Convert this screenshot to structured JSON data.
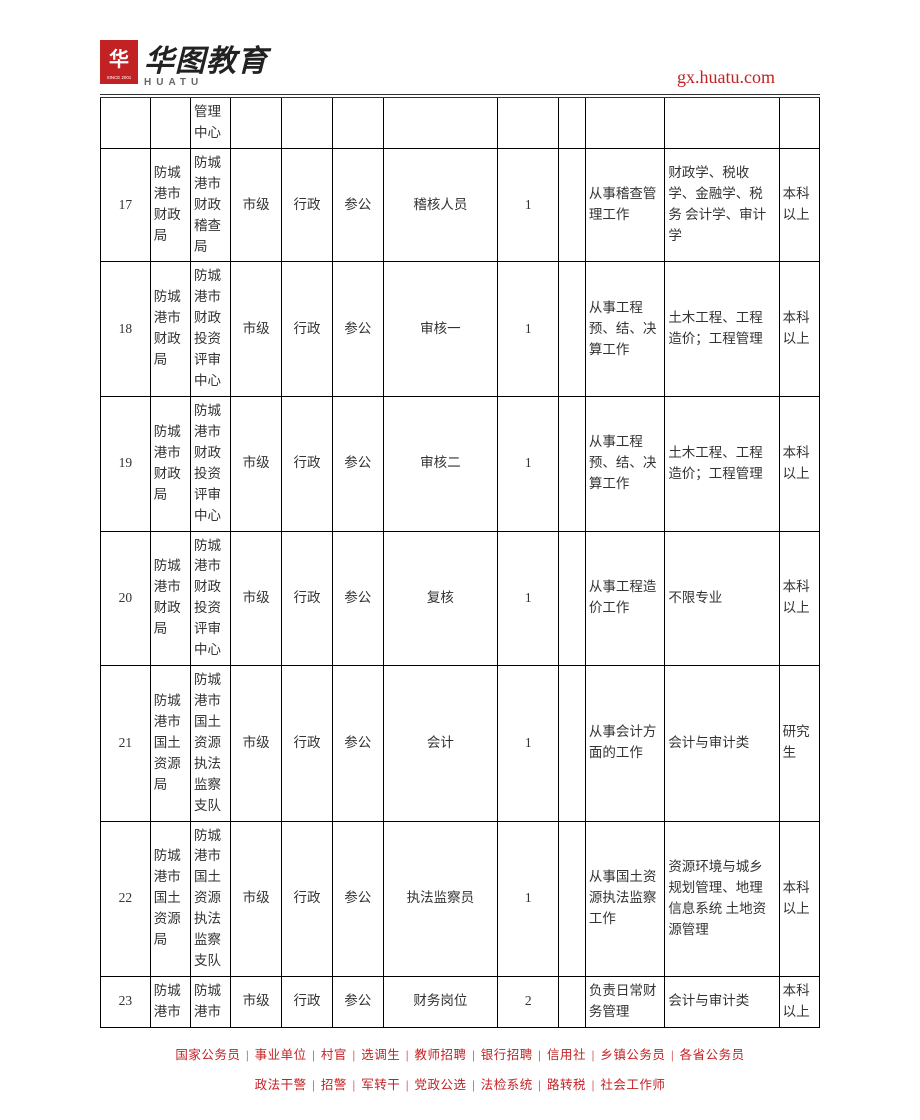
{
  "header": {
    "logo_cn": "华图教育",
    "logo_en": "HUATU",
    "url": "gx.huatu.com"
  },
  "table": {
    "column_widths_class": [
      "col0",
      "col1",
      "col2",
      "col3",
      "col4",
      "col5",
      "col6",
      "col7",
      "col8",
      "col9",
      "col10",
      "col11"
    ],
    "rows": [
      {
        "top_partial": true,
        "cells": [
          "",
          "",
          "管理中心",
          "",
          "",
          "",
          "",
          "",
          "",
          "",
          "",
          ""
        ],
        "align": [
          "c",
          "l",
          "l",
          "c",
          "c",
          "c",
          "c",
          "c",
          "c",
          "l",
          "l",
          "l"
        ]
      },
      {
        "cells": [
          "17",
          "防城港市财政局",
          "防城港市财政稽查局",
          "市级",
          "行政",
          "参公",
          "稽核人员",
          "1",
          "",
          "从事稽查管理工作",
          "财政学、税收学、金融学、税务 会计学、审计学",
          "本科以上"
        ],
        "align": [
          "c",
          "l",
          "l",
          "c",
          "c",
          "c",
          "c",
          "c",
          "c",
          "l",
          "l",
          "l"
        ]
      },
      {
        "cells": [
          "18",
          "防城港市财政局",
          "防城港市财政投资评审中心",
          "市级",
          "行政",
          "参公",
          "审核一",
          "1",
          "",
          "从事工程预、结、决算工作",
          "土木工程、工程造价；工程管理",
          "本科以上"
        ],
        "align": [
          "c",
          "l",
          "l",
          "c",
          "c",
          "c",
          "c",
          "c",
          "c",
          "l",
          "l",
          "l"
        ]
      },
      {
        "cells": [
          "19",
          "防城港市财政局",
          "防城港市财政投资评审中心",
          "市级",
          "行政",
          "参公",
          "审核二",
          "1",
          "",
          "从事工程预、结、决算工作",
          "土木工程、工程造价；工程管理",
          "本科以上"
        ],
        "align": [
          "c",
          "l",
          "l",
          "c",
          "c",
          "c",
          "c",
          "c",
          "c",
          "l",
          "l",
          "l"
        ]
      },
      {
        "cells": [
          "20",
          "防城港市财政局",
          "防城港市财政投资评审中心",
          "市级",
          "行政",
          "参公",
          "复核",
          "1",
          "",
          "从事工程造价工作",
          "不限专业",
          "本科以上"
        ],
        "align": [
          "c",
          "l",
          "l",
          "c",
          "c",
          "c",
          "c",
          "c",
          "c",
          "l",
          "l",
          "l"
        ]
      },
      {
        "cells": [
          "21",
          "防城港市国土资源局",
          "防城港市国土资源执法监察支队",
          "市级",
          "行政",
          "参公",
          "会计",
          "1",
          "",
          "从事会计方面的工作",
          "会计与审计类",
          "研究生"
        ],
        "align": [
          "c",
          "l",
          "l",
          "c",
          "c",
          "c",
          "c",
          "c",
          "c",
          "l",
          "l",
          "l"
        ]
      },
      {
        "cells": [
          "22",
          "防城港市国土资源局",
          "防城港市国土资源执法监察支队",
          "市级",
          "行政",
          "参公",
          "执法监察员",
          "1",
          "",
          "从事国土资源执法监察工作",
          "资源环境与城乡规划管理、地理信息系统 土地资源管理",
          "本科以上"
        ],
        "align": [
          "c",
          "l",
          "l",
          "c",
          "c",
          "c",
          "c",
          "c",
          "c",
          "l",
          "l",
          "l"
        ]
      },
      {
        "cells": [
          "23",
          "防城港市",
          "防城港市",
          "市级",
          "行政",
          "参公",
          "财务岗位",
          "2",
          "",
          "负责日常财务管理",
          "会计与审计类",
          "本科以上"
        ],
        "align": [
          "c",
          "l",
          "l",
          "c",
          "c",
          "c",
          "c",
          "c",
          "c",
          "l",
          "l",
          "l"
        ]
      }
    ]
  },
  "footer": {
    "line1": [
      "国家公务员",
      "事业单位",
      "村官",
      "选调生",
      "教师招聘",
      "银行招聘",
      "信用社",
      "乡镇公务员",
      "各省公务员"
    ],
    "line2": [
      "政法干警",
      "招警",
      "军转干",
      "党政公选",
      "法检系统",
      "路转税",
      "社会工作师"
    ],
    "separator": "|"
  },
  "colors": {
    "brand_red": "#c32225",
    "text": "#333333",
    "border": "#000000",
    "background": "#ffffff"
  }
}
